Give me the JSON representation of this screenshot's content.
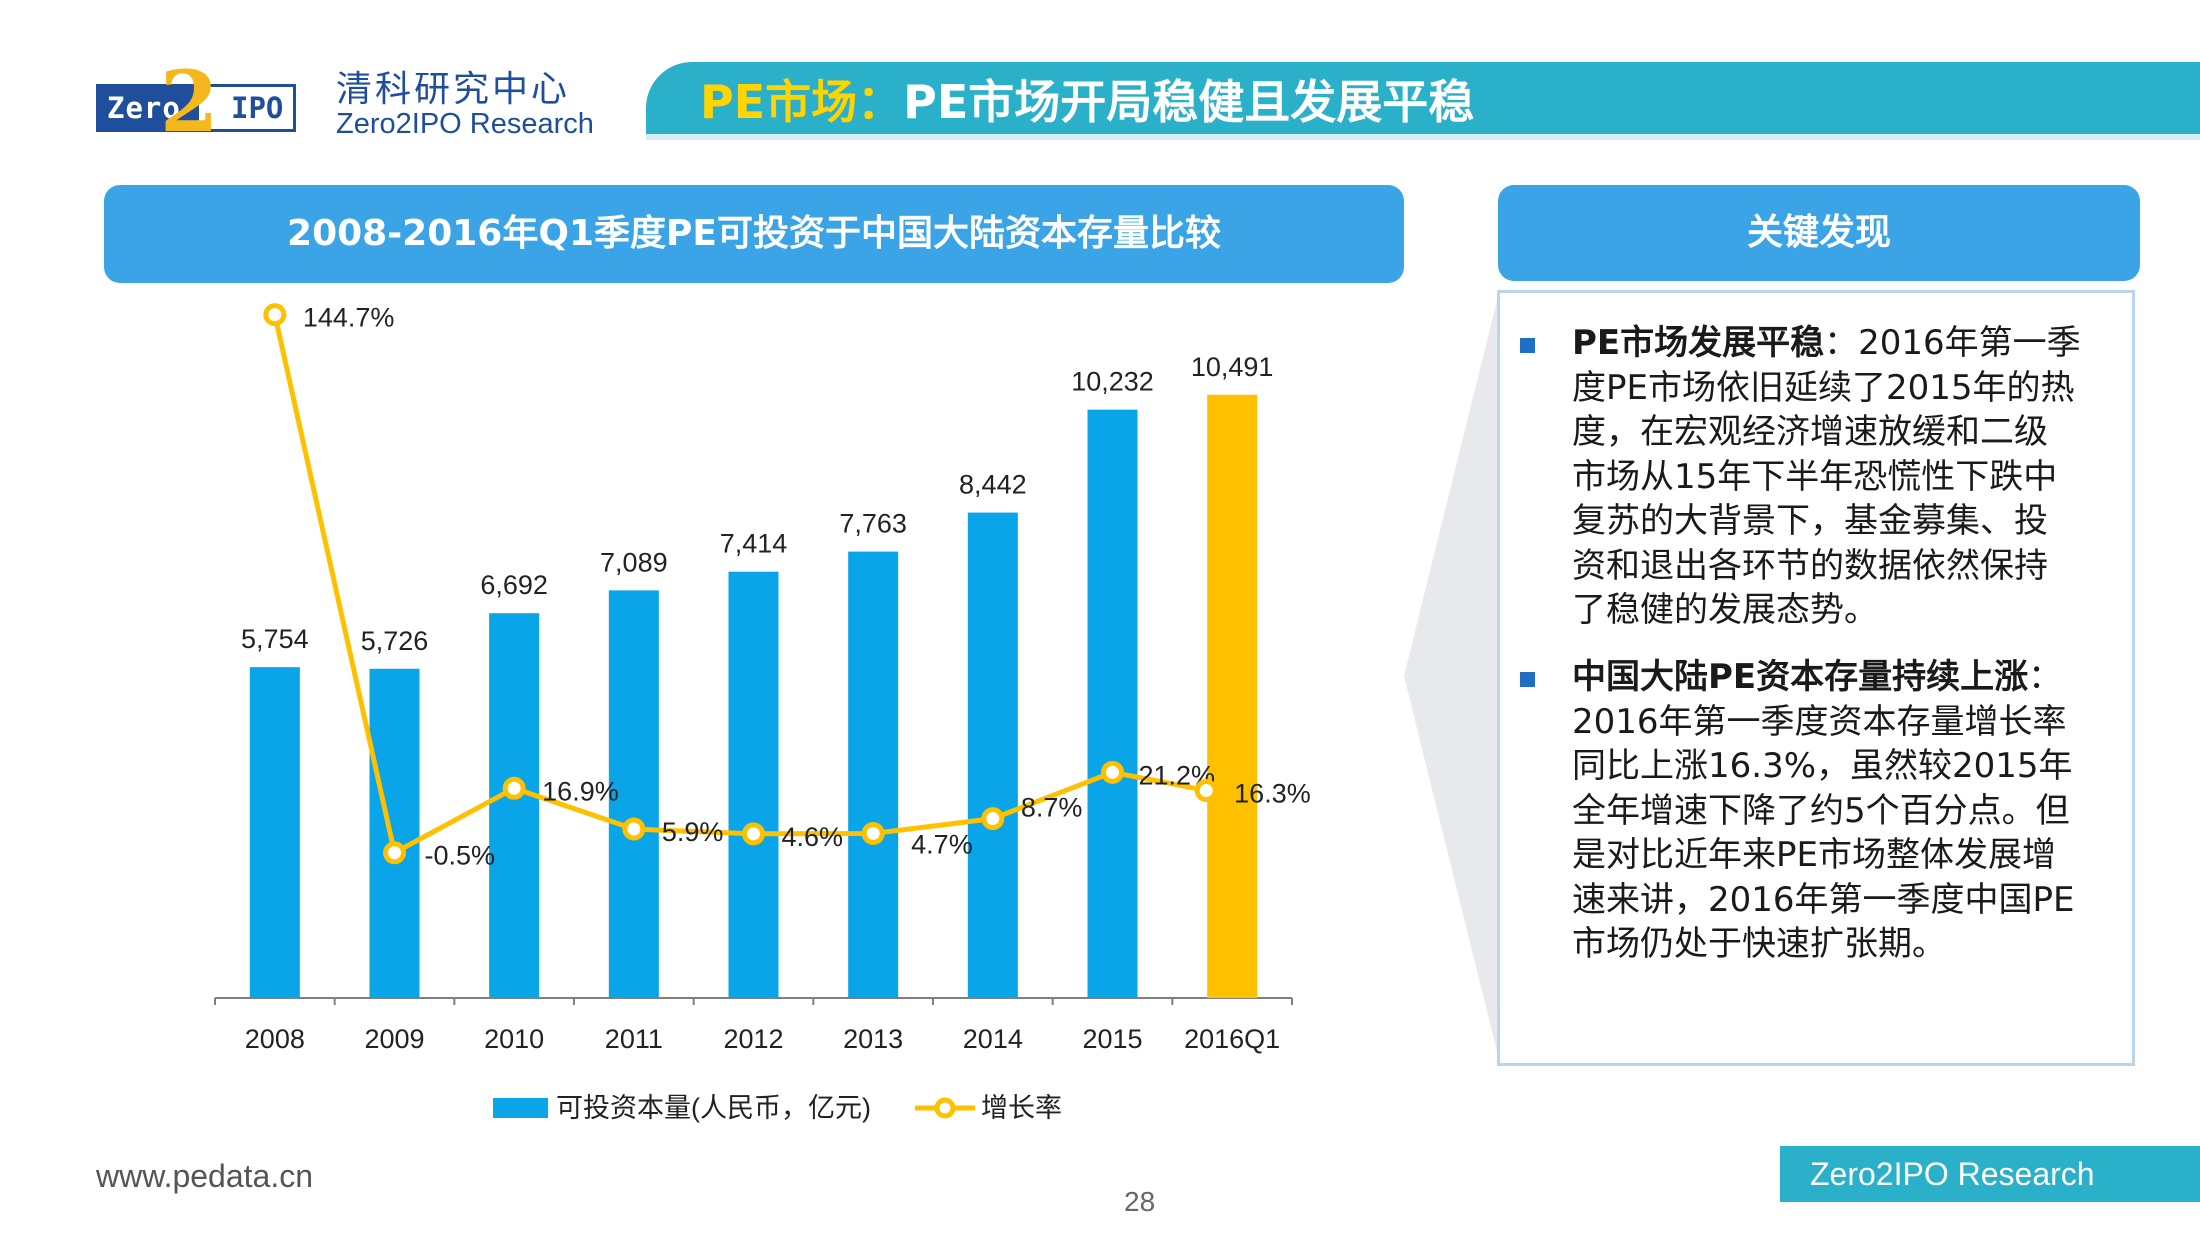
{
  "header": {
    "logo": {
      "left": "Zero",
      "mid": "2",
      "right": "IPO"
    },
    "brand_cn": "清科研究中心",
    "brand_en": "Zero2IPO Research",
    "title_highlight": "PE市场：",
    "title_rest": "PE市场开局稳健且发展平稳"
  },
  "chart_panel": {
    "title": "2008-2016年Q1季度PE可投资于中国大陆资本存量比较"
  },
  "chart_data": {
    "type": "bar",
    "categories": [
      "2008",
      "2009",
      "2010",
      "2011",
      "2012",
      "2013",
      "2014",
      "2015",
      "2016Q1"
    ],
    "series": [
      {
        "name": "可投资本量(人民币，亿元)",
        "type": "bar",
        "values": [
          5754,
          5726,
          6692,
          7089,
          7414,
          7763,
          8442,
          10232,
          10491
        ],
        "labels": [
          "5,754",
          "5,726",
          "6,692",
          "7,089",
          "7,414",
          "7,763",
          "8,442",
          "10,232",
          "10,491"
        ],
        "color": "#0aa4e8",
        "highlight_last_color": "#ffc000"
      },
      {
        "name": "增长率",
        "type": "line",
        "values": [
          144.7,
          -0.5,
          16.9,
          5.9,
          4.6,
          4.7,
          8.7,
          21.2,
          16.3
        ],
        "labels": [
          "144.7%",
          "-0.5%",
          "16.9%",
          "5.9%",
          "4.6%",
          "4.7%",
          "8.7%",
          "21.2%",
          "16.3%"
        ],
        "color": "#ffc000"
      }
    ],
    "ylim": [
      0,
      12000
    ],
    "y2lim": [
      -20,
      150
    ],
    "grid": false,
    "legend": "bottom"
  },
  "key_findings": {
    "title": "关键发现",
    "items": [
      {
        "bold": "PE市场发展平稳",
        "lines": [
          "：2016年第一季",
          "度PE市场依旧延续了2015年的热",
          "度，在宏观经济增速放缓和二级",
          "市场从15年下半年恐慌性下跌中",
          "复苏的大背景下，基金募集、投",
          "资和退出各环节的数据依然保持",
          "了稳健的发展态势。"
        ]
      },
      {
        "bold": "中国大陆PE资本存量持续上涨",
        "lines": [
          "：",
          "2016年第一季度资本存量增长率",
          "同比上涨16.3%，虽然较2015年",
          "全年增速下降了约5个百分点。但",
          "是对比近年来PE市场整体发展增",
          "速来讲，2016年第一季度中国PE",
          "市场仍处于快速扩张期。"
        ]
      }
    ]
  },
  "footer": {
    "url": "www.pedata.cn",
    "page": "28",
    "brand": "Zero2IPO Research"
  }
}
